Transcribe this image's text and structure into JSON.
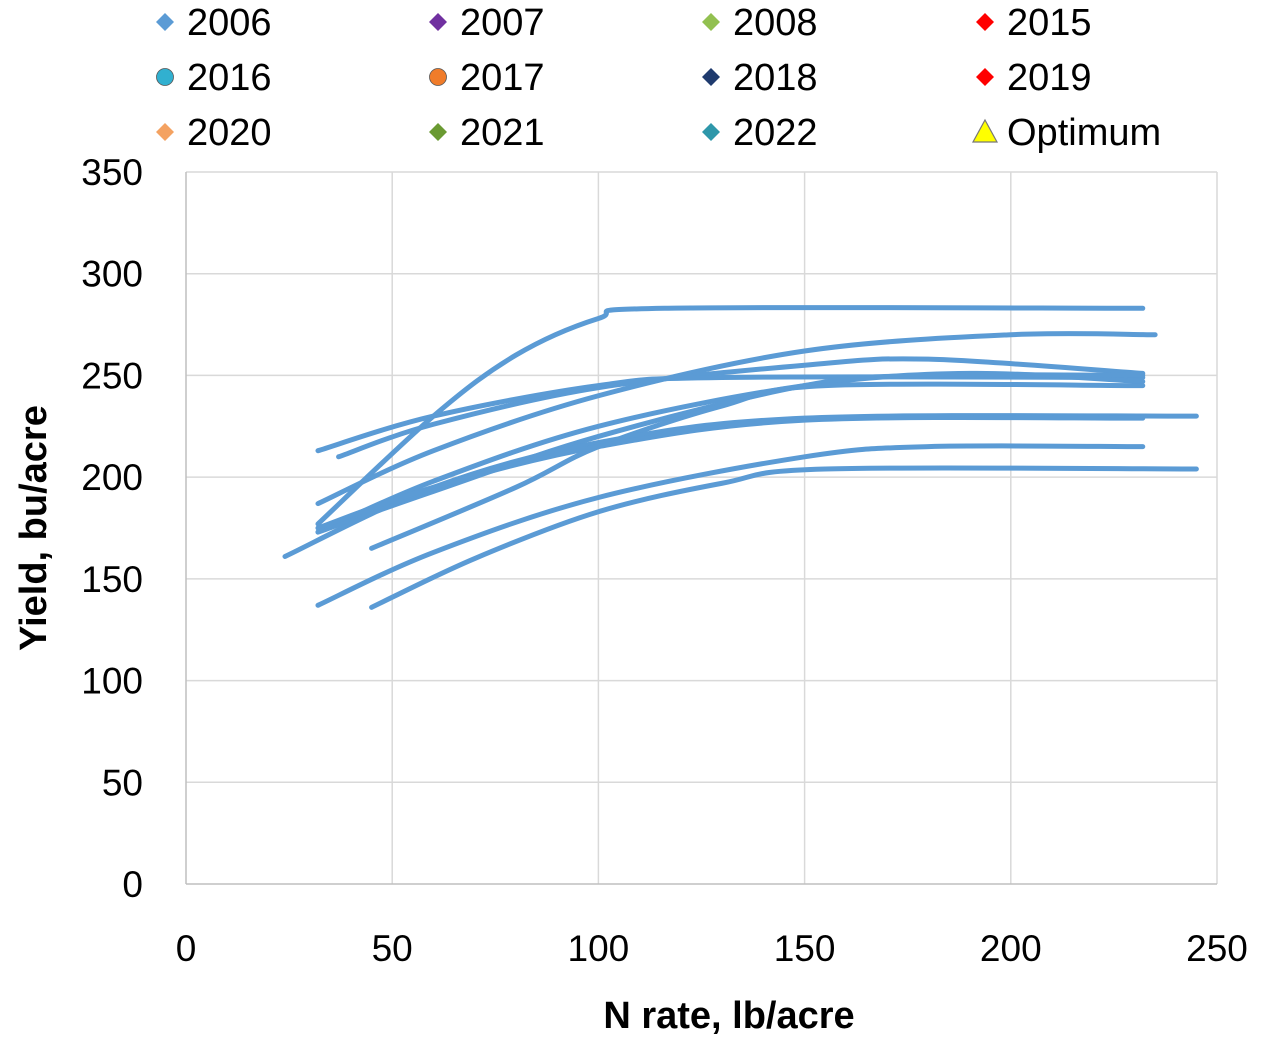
{
  "chart_data": {
    "type": "line",
    "title": "",
    "xlabel": "N rate, lb/acre",
    "ylabel": "Yield, bu/acre",
    "xlim": [
      0,
      250
    ],
    "ylim": [
      0,
      350
    ],
    "x_ticks": [
      0,
      50,
      100,
      150,
      200,
      250
    ],
    "y_ticks": [
      0,
      50,
      100,
      150,
      200,
      250,
      300,
      350
    ],
    "grid": "vertical and horizontal gridlines",
    "legend_position": "top",
    "line_color": "#5b9bd5",
    "legend": [
      {
        "label": "2006",
        "marker": "diamond",
        "color": "#5b9bd5"
      },
      {
        "label": "2007",
        "marker": "diamond",
        "color": "#7030a0"
      },
      {
        "label": "2008",
        "marker": "diamond",
        "color": "#92c050"
      },
      {
        "label": "2015",
        "marker": "diamond",
        "color": "#ff0000"
      },
      {
        "label": "2016",
        "marker": "circle",
        "color": "#31b0d0"
      },
      {
        "label": "2017",
        "marker": "circle",
        "color": "#f07c2a"
      },
      {
        "label": "2018",
        "marker": "diamond",
        "color": "#1f3b6e"
      },
      {
        "label": "2019",
        "marker": "diamond",
        "color": "#ff0000"
      },
      {
        "label": "2020",
        "marker": "diamond",
        "color": "#f4a261"
      },
      {
        "label": "2021",
        "marker": "diamond",
        "color": "#6a9a32"
      },
      {
        "label": "2022",
        "marker": "diamond",
        "color": "#2e97aa"
      },
      {
        "label": "Optimum",
        "marker": "triangle",
        "color": "#ffff00"
      }
    ],
    "series": [
      {
        "x": [
          32,
          60,
          80,
          100,
          116,
          232
        ],
        "y": [
          177,
          230,
          260,
          278,
          283,
          283
        ]
      },
      {
        "x": [
          32,
          60,
          100,
          150,
          200,
          235
        ],
        "y": [
          187,
          213,
          240,
          262,
          270,
          270
        ]
      },
      {
        "x": [
          37,
          60,
          100,
          150,
          180,
          232
        ],
        "y": [
          210,
          226,
          244,
          255,
          258,
          251
        ]
      },
      {
        "x": [
          32,
          60,
          100,
          130,
          232
        ],
        "y": [
          213,
          230,
          245,
          249,
          249
        ]
      },
      {
        "x": [
          32,
          60,
          100,
          150,
          190,
          232
        ],
        "y": [
          173,
          198,
          225,
          245,
          251,
          247
        ]
      },
      {
        "x": [
          32,
          60,
          100,
          150,
          180,
          232
        ],
        "y": [
          173,
          193,
          220,
          245,
          250,
          250
        ]
      },
      {
        "x": [
          45,
          80,
          100,
          130,
          155,
          232
        ],
        "y": [
          165,
          195,
          215,
          235,
          245,
          245
        ]
      },
      {
        "x": [
          24,
          60,
          100,
          150,
          245
        ],
        "y": [
          161,
          195,
          217,
          229,
          230
        ]
      },
      {
        "x": [
          32,
          60,
          100,
          150,
          232
        ],
        "y": [
          175,
          195,
          215,
          228,
          229
        ]
      },
      {
        "x": [
          32,
          60,
          100,
          150,
          180,
          232
        ],
        "y": [
          137,
          163,
          190,
          210,
          215,
          215
        ]
      },
      {
        "x": [
          45,
          70,
          100,
          130,
          155,
          245
        ],
        "y": [
          136,
          160,
          183,
          197,
          204,
          204
        ]
      }
    ]
  }
}
